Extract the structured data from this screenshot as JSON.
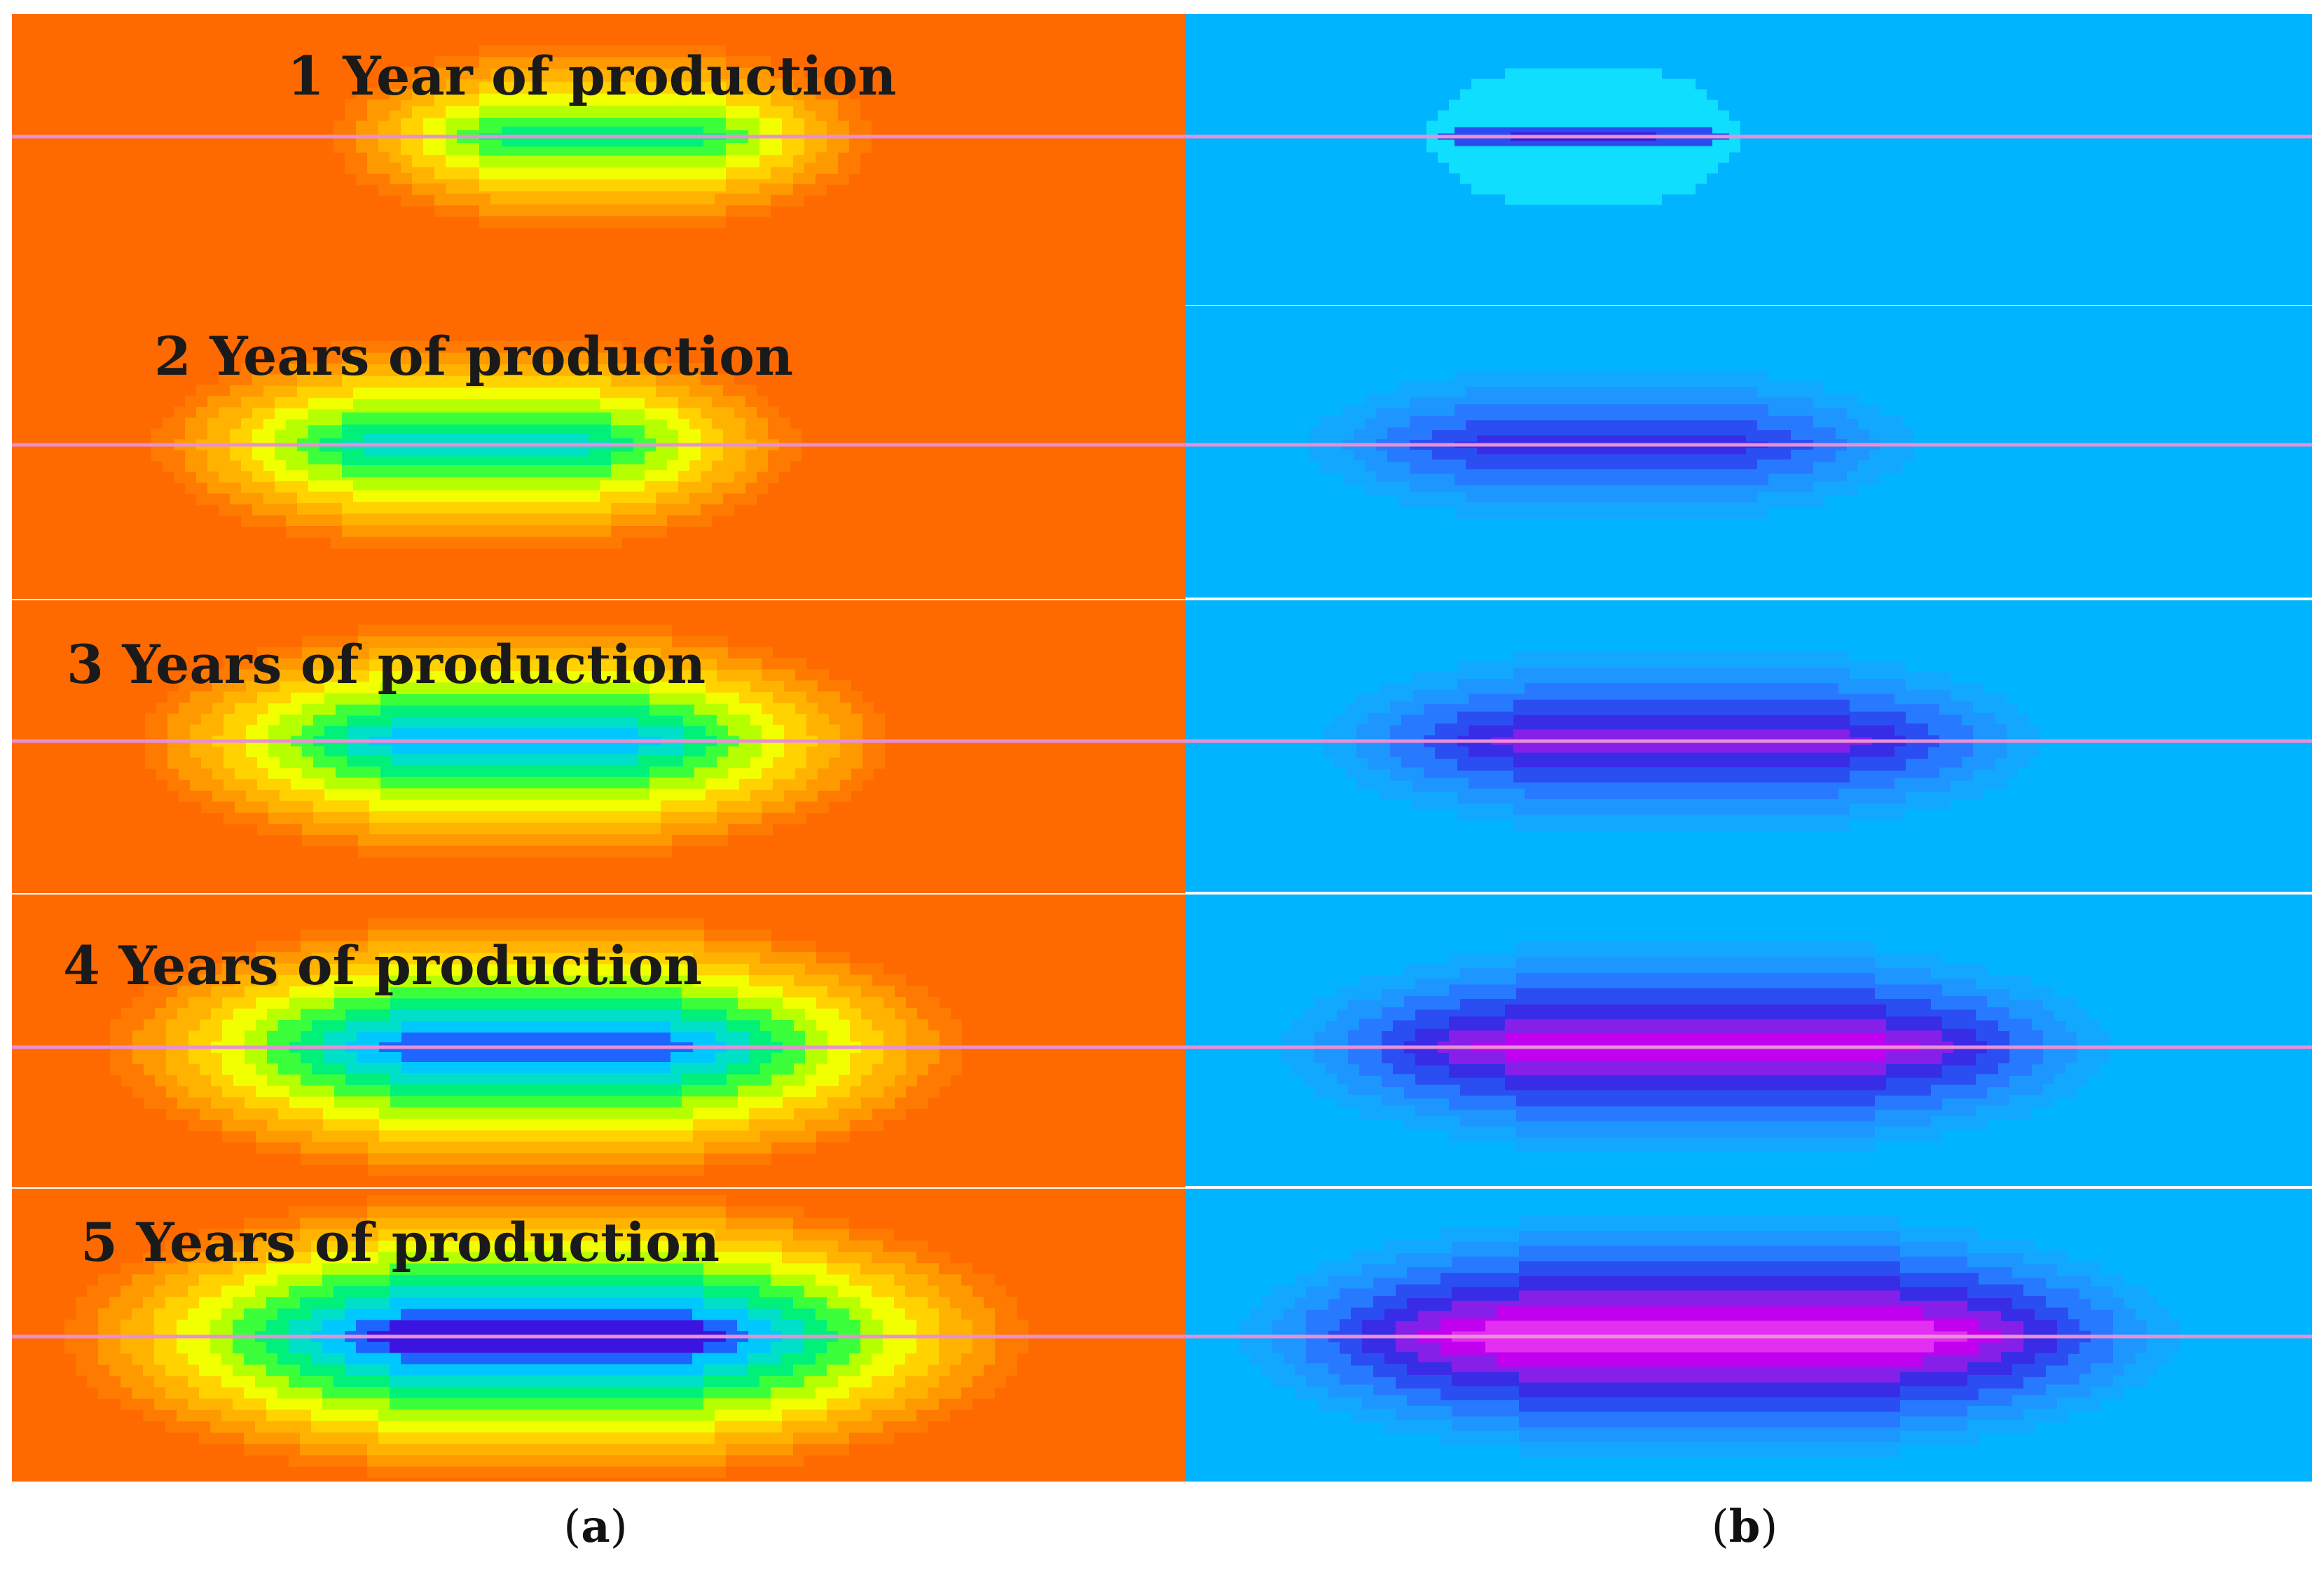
{
  "figure": {
    "panel_a_years": [
      1,
      2,
      3,
      4,
      5
    ],
    "panel_b_years": [
      1,
      2,
      3,
      4,
      5
    ],
    "panels": [
      {
        "label": "1 Year of production",
        "years": 1
      },
      {
        "label": "2 Years of production",
        "years": 2
      },
      {
        "label": "3 Years of production",
        "years": 3
      },
      {
        "label": "4 Years of production",
        "years": 4
      },
      {
        "label": "5 Years of production",
        "years": 5
      }
    ],
    "caption_a": {
      "open": "(",
      "letter": "a",
      "close": ")"
    },
    "caption_b": {
      "open": "(",
      "letter": "b",
      "close": ")"
    }
  },
  "colors": {
    "a_background": "#ff6a00",
    "a_bands": [
      "#ff7a00",
      "#ff9900",
      "#ffb300",
      "#ffd200",
      "#f2ff00",
      "#b6ff00",
      "#3cff3c",
      "#00f07a",
      "#00e0c8",
      "#00c8ff",
      "#1e64ff",
      "#3c14e0",
      "#7a00cc"
    ],
    "b_background": "#00b4ff",
    "b_bands": [
      "#14a8ff",
      "#1e96ff",
      "#2878ff",
      "#2a4cf0",
      "#3a2ae6",
      "#8a20e8",
      "#c400f0",
      "#e630f0"
    ],
    "b_halo": "#14ecff",
    "well_line": "#e890d6",
    "label_text": "#1a1a1a",
    "separator": "#ffffff"
  }
}
